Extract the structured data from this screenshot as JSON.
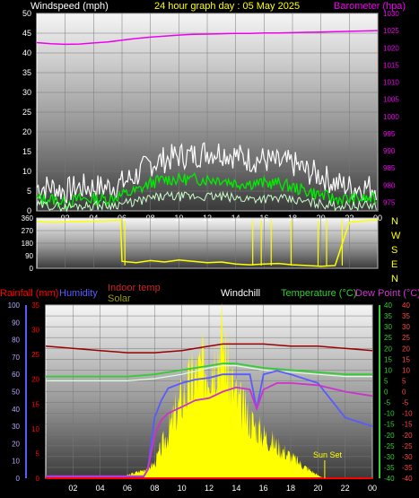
{
  "header": {
    "windspeed_label": "Windspeed (mph)",
    "title": "24 hour graph day : 05 May 2025",
    "barometer_label": "Barometer (hpa)"
  },
  "labels": {
    "rainfall": "Rainfall (mm)",
    "humidity": "Humidity",
    "indoor_temp": "Indoor temp",
    "solar": "Solar",
    "windchill": "Windchill",
    "temperature": "Temperature (°C)",
    "dew_point": "Dew Point (°C)",
    "sun_set": "Sun Set"
  },
  "compass": [
    "N",
    "W",
    "S",
    "E",
    "N"
  ],
  "colors": {
    "windspeed": "#ffffff",
    "gust": "#00ee00",
    "barometer": "#ee00ee",
    "direction": "#ffff00",
    "rainfall": "#ff0000",
    "humidity": "#5a5aff",
    "indoor_temp": "#990000",
    "solar": "#ffff00",
    "windchill": "#ffffff",
    "temperature": "#33cc33",
    "dew_point": "#cc33cc"
  },
  "chart_data": [
    {
      "type": "line",
      "name": "wind-barometer",
      "x_ticks": [
        "02",
        "04",
        "06",
        "08",
        "10",
        "12",
        "14",
        "16",
        "18",
        "20",
        "22",
        "00"
      ],
      "y_left_ticks": [
        "0",
        "5",
        "10",
        "15",
        "20",
        "25",
        "30",
        "35",
        "40",
        "45",
        "50"
      ],
      "y_left_range": [
        0,
        50
      ],
      "y_right_ticks": [
        "975",
        "980",
        "985",
        "990",
        "995",
        "1000",
        "1005",
        "1010",
        "1015",
        "1020",
        "1025",
        "1030"
      ],
      "y_right_range": [
        972.5,
        1030
      ],
      "x_range_hours": [
        0,
        24
      ],
      "barometer": {
        "x": [
          0,
          1,
          2,
          3,
          4,
          5,
          6,
          7,
          8,
          9,
          10,
          11,
          12,
          13,
          14,
          15,
          16,
          17,
          18,
          19,
          20,
          21,
          22,
          23,
          24
        ],
        "values": [
          1021.5,
          1021.2,
          1021.0,
          1021.1,
          1021.4,
          1021.7,
          1022.2,
          1022.7,
          1023.1,
          1023.4,
          1023.7,
          1023.9,
          1024.0,
          1024.1,
          1024.2,
          1024.2,
          1024.3,
          1024.3,
          1024.4,
          1024.5,
          1024.6,
          1024.7,
          1024.8,
          1024.9,
          1025.0
        ]
      },
      "windspeed_avg": {
        "x": [
          0,
          1,
          2,
          3,
          4,
          5,
          6,
          7,
          8,
          9,
          10,
          11,
          12,
          13,
          14,
          15,
          16,
          17,
          18,
          19,
          20,
          21,
          22,
          23,
          24
        ],
        "values": [
          3,
          3,
          2,
          3,
          3,
          3,
          4,
          5,
          7,
          8,
          8,
          8,
          8,
          8,
          7,
          7,
          7,
          7,
          6,
          5,
          4,
          3,
          3,
          3,
          3
        ]
      },
      "windspeed_gust": {
        "x": [
          0,
          1,
          2,
          3,
          4,
          5,
          6,
          7,
          8,
          9,
          10,
          11,
          12,
          13,
          14,
          15,
          16,
          17,
          18,
          19,
          20,
          21,
          22,
          23,
          24
        ],
        "values": [
          6,
          6,
          5,
          6,
          6,
          6,
          7,
          9,
          12,
          13,
          14,
          14,
          15,
          15,
          14,
          13,
          13,
          12,
          12,
          10,
          9,
          7,
          6,
          6,
          6
        ]
      }
    },
    {
      "type": "line",
      "name": "wind-direction",
      "y_ticks": [
        "0",
        "90",
        "180",
        "270",
        "360"
      ],
      "y_range": [
        0,
        360
      ],
      "x_range_hours": [
        0,
        24
      ],
      "x": [
        0,
        1,
        2,
        3,
        4,
        5,
        5.9,
        6,
        7,
        8,
        9,
        10,
        11,
        12,
        13,
        14,
        15,
        16,
        17,
        18,
        19,
        20,
        21,
        22,
        23,
        24
      ],
      "values": [
        335,
        330,
        332,
        335,
        338,
        340,
        345,
        50,
        40,
        55,
        45,
        60,
        50,
        40,
        45,
        30,
        25,
        30,
        35,
        25,
        20,
        15,
        20,
        330,
        340,
        345
      ]
    },
    {
      "type": "line",
      "name": "temperature-humidity-solar",
      "x_range_hours": [
        0,
        24
      ],
      "rain_ticks": [
        "0",
        "5",
        "10",
        "15",
        "20",
        "25",
        "30",
        "35"
      ],
      "rain_range": [
        0,
        35
      ],
      "humidity_ticks": [
        "0",
        "10",
        "20",
        "30",
        "40",
        "50",
        "60",
        "70",
        "80",
        "90",
        "100"
      ],
      "humidity_range": [
        0,
        100
      ],
      "temp_ticks": [
        "-40",
        "-35",
        "-30",
        "-25",
        "-20",
        "-15",
        "-10",
        "-5",
        "0",
        "5",
        "10",
        "15",
        "20",
        "25",
        "30",
        "35",
        "40"
      ],
      "temp_range": [
        -40,
        40
      ],
      "dew_ticks": [
        "-40",
        "-35",
        "-30",
        "-25",
        "-20",
        "-15",
        "-10",
        "-5",
        "0",
        "5",
        "10",
        "15",
        "20",
        "25",
        "30",
        "35",
        "40"
      ],
      "temperature": {
        "x": [
          0,
          2,
          4,
          6,
          8,
          10,
          12,
          13,
          14,
          15,
          16,
          18,
          20,
          22,
          24
        ],
        "values": [
          7,
          7,
          7,
          7,
          8,
          10,
          12,
          13,
          13,
          12,
          11,
          10,
          9,
          8,
          8
        ]
      },
      "windchill": {
        "x": [
          0,
          2,
          4,
          6,
          8,
          10,
          12,
          13,
          14,
          15,
          16,
          18,
          20,
          22,
          24
        ],
        "values": [
          5,
          5,
          5,
          5,
          6,
          8,
          11,
          12,
          12,
          11,
          10,
          9,
          8,
          7,
          7
        ]
      },
      "dew_point": {
        "x": [
          0,
          6,
          7.2,
          7.5,
          8,
          8.5,
          9,
          10,
          11,
          12,
          13,
          14,
          15,
          15.5,
          16,
          17,
          18,
          20,
          22,
          24
        ],
        "values": [
          -39,
          -39,
          -39,
          -36,
          -20,
          -13,
          -10,
          -7,
          -4,
          -3,
          0,
          2,
          1,
          -8,
          1,
          4,
          4,
          3,
          0,
          -2
        ]
      },
      "humidity": {
        "x": [
          0,
          6,
          7.2,
          7.5,
          8,
          8.5,
          9,
          10,
          11,
          12,
          13,
          14,
          15,
          15.5,
          16,
          17,
          18,
          20,
          22,
          24
        ],
        "values": [
          1,
          1,
          1,
          5,
          35,
          45,
          52,
          55,
          57,
          58,
          60,
          60,
          60,
          40,
          60,
          62,
          60,
          55,
          35,
          30
        ]
      },
      "indoor_temp": {
        "x": [
          0,
          2,
          4,
          6,
          8,
          10,
          12,
          13,
          14,
          16,
          18,
          20,
          22,
          24
        ],
        "values": [
          21,
          20,
          19,
          18,
          18,
          19,
          21,
          22,
          22,
          22,
          21,
          21,
          20,
          19
        ]
      },
      "solar": {
        "x": [
          0,
          5.5,
          6,
          7,
          8,
          9,
          10,
          11,
          12,
          12.5,
          13,
          13.5,
          14,
          15,
          16,
          17,
          18,
          19,
          20,
          20.5,
          24
        ],
        "values": [
          0,
          0,
          2,
          5,
          10,
          32,
          55,
          70,
          80,
          85,
          95,
          70,
          55,
          40,
          30,
          22,
          15,
          8,
          2,
          0,
          0
        ]
      },
      "rainfall": {
        "x": [
          0,
          24
        ],
        "values": [
          0,
          0
        ]
      }
    }
  ]
}
